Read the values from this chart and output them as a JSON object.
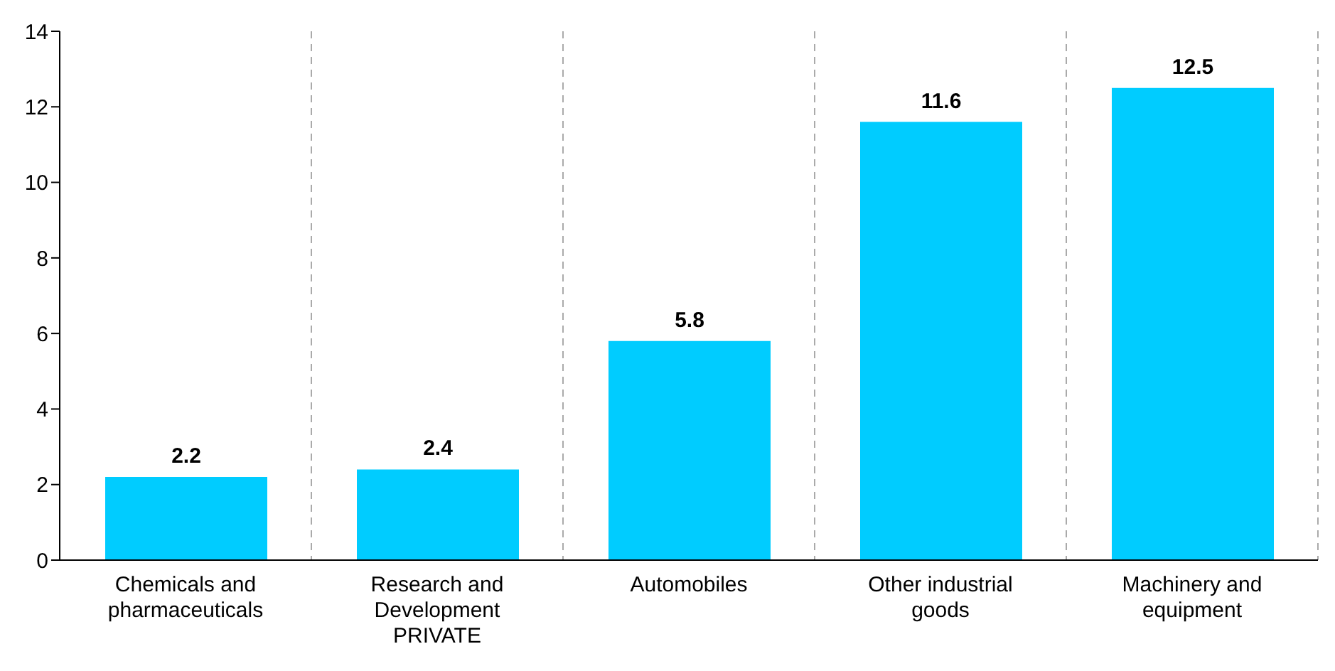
{
  "chart_data": {
    "type": "bar",
    "categories": [
      "Chemicals and pharmaceuticals",
      "Research and Development PRIVATE",
      "Automobiles",
      "Other industrial goods",
      "Machinery and equipment"
    ],
    "values": [
      2.2,
      2.4,
      5.8,
      11.6,
      12.5
    ],
    "color": "#00ccff",
    "ylim": [
      0,
      14
    ],
    "yticks": [
      0,
      2,
      4,
      6,
      8,
      10,
      12,
      14
    ],
    "grid": "x",
    "data_labels": true
  }
}
